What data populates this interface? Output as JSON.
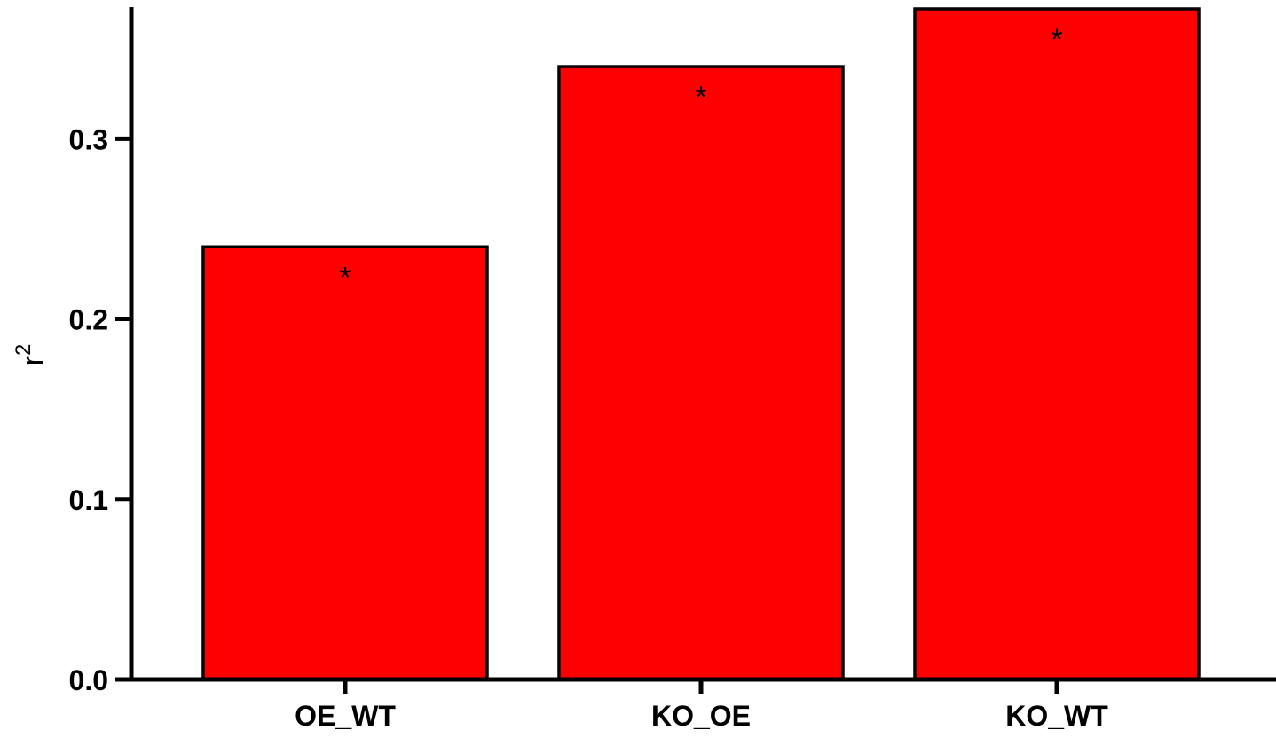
{
  "chart_data": {
    "type": "bar",
    "title": "",
    "xlabel": "",
    "ylabel": "r",
    "ylabel_superscript": "2",
    "categories": [
      "OE_WT",
      "KO_OE",
      "KO_WT"
    ],
    "values": [
      0.24,
      0.34,
      0.372
    ],
    "annotations": [
      "*",
      "*",
      "*"
    ],
    "ylim": [
      0,
      0.372
    ],
    "yticks": [
      "0.0",
      "0.1",
      "0.2",
      "0.3"
    ],
    "ytick_values": [
      0,
      0.1,
      0.2,
      0.3
    ],
    "bar_color": "#ff0000",
    "edge_color": "#000000",
    "grid": false,
    "legend": "none"
  }
}
